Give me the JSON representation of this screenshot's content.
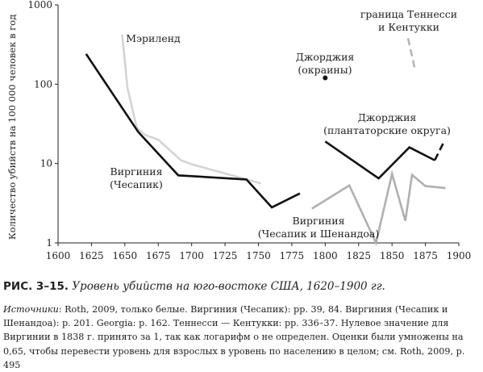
{
  "chart_data": {
    "type": "line",
    "ylabel": "Количество убийств на 100 000 человек в год",
    "xlabel": "",
    "x_ticks": [
      1600,
      1625,
      1650,
      1675,
      1700,
      1725,
      1750,
      1775,
      1800,
      1825,
      1850,
      1875,
      1900
    ],
    "y_ticks": [
      1,
      10,
      100,
      1000
    ],
    "y_scale": "log",
    "xlim": [
      1600,
      1900
    ],
    "ylim": [
      1,
      1000
    ],
    "grid": false,
    "series": [
      {
        "name": "Мэриленд",
        "color": "#d4d4d4",
        "style": "solid",
        "points": [
          [
            1648,
            420
          ],
          [
            1652,
            90
          ],
          [
            1659,
            28
          ],
          [
            1665,
            23
          ],
          [
            1675,
            20
          ],
          [
            1692,
            11
          ],
          [
            1700,
            9.8
          ],
          [
            1752,
            5.6
          ]
        ]
      },
      {
        "name": "Виргиния\n(Чесапик)",
        "color": "#111111",
        "style": "solid",
        "points": [
          [
            1621,
            240
          ],
          [
            1660,
            25
          ],
          [
            1690,
            7.1
          ],
          [
            1741,
            6.3
          ],
          [
            1760,
            2.8
          ],
          [
            1781,
            4.2
          ]
        ]
      },
      {
        "name": "Джорджия\n(окраины)",
        "color": "#111111",
        "style": "marker",
        "points": [
          [
            1800,
            120
          ]
        ]
      },
      {
        "name": "Джорджия\n(плантаторские округа)",
        "color": "#111111",
        "style": "solid",
        "points": [
          [
            1800,
            19
          ],
          [
            1840,
            6.5
          ],
          [
            1863,
            16
          ],
          [
            1882,
            11
          ]
        ]
      },
      {
        "name": "",
        "color": "#111111",
        "style": "dashed",
        "points": [
          [
            1882,
            11
          ],
          [
            1889,
            19
          ]
        ]
      },
      {
        "name": "граница Теннесси\nи Кентукки",
        "color": "#b5b5b5",
        "style": "dashed",
        "points": [
          [
            1862,
            380
          ],
          [
            1867,
            160
          ]
        ]
      },
      {
        "name": "Виргиния\n(Чесапик и Шенандоа)",
        "color": "#b0b0b0",
        "style": "solid",
        "points": [
          [
            1790,
            2.7
          ],
          [
            1818,
            5.3
          ],
          [
            1838,
            1.0
          ],
          [
            1850,
            7.4
          ],
          [
            1860,
            1.9
          ],
          [
            1865,
            7.2
          ],
          [
            1875,
            5.2
          ],
          [
            1890,
            4.9
          ]
        ]
      }
    ]
  },
  "caption": {
    "label": "РИС. 3–15.",
    "title": "Уровень убийств на юго-востоке США, 1620–1900 гг."
  },
  "sources": {
    "label": "Источники",
    "text": ": Roth, 2009, только белые. Виргиния (Чесапик): pp. 39, 84. Виргиния (Чесапик и Шенандоа): p. 201. Georgia: p. 162. Теннесси — Кентукки: pp. 336–37. Нулевое значение для Виргинии в 1838 г. принято за 1, так как логарифм о не определен. Оценки были умножены на 0,65, чтобы перевести уровень для взрослых в уровень по населению в целом; см. Roth, 2009, p. 495"
  }
}
